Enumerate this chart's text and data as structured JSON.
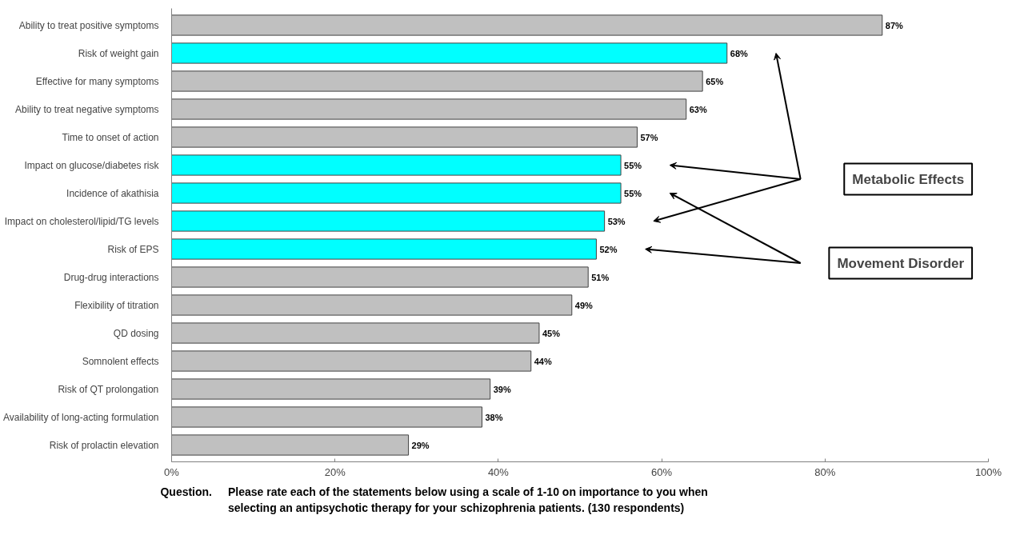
{
  "chart_data": {
    "type": "bar",
    "orientation": "horizontal",
    "categories": [
      "Ability to treat positive symptoms",
      "Risk of weight gain",
      "Effective for many symptoms",
      "Ability to treat negative symptoms",
      "Time to onset of action",
      "Impact on glucose/diabetes risk",
      "Incidence of akathisia",
      "Impact on cholesterol/lipid/TG levels",
      "Risk of EPS",
      "Drug-drug interactions",
      "Flexibility of titration",
      "QD dosing",
      "Somnolent effects",
      "Risk of QT prolongation",
      "Availability of long-acting formulation",
      "Risk of prolactin elevation"
    ],
    "values": [
      87,
      68,
      65,
      63,
      57,
      55,
      55,
      53,
      52,
      51,
      49,
      45,
      44,
      39,
      38,
      29
    ],
    "value_labels": [
      "87%",
      "68%",
      "65%",
      "63%",
      "57%",
      "55%",
      "55%",
      "53%",
      "52%",
      "51%",
      "49%",
      "45%",
      "44%",
      "39%",
      "38%",
      "29%"
    ],
    "colors": [
      "#c0c0c0",
      "#00ffff",
      "#c0c0c0",
      "#c0c0c0",
      "#c0c0c0",
      "#00ffff",
      "#00ffff",
      "#00ffff",
      "#00ffff",
      "#c0c0c0",
      "#c0c0c0",
      "#c0c0c0",
      "#c0c0c0",
      "#c0c0c0",
      "#c0c0c0",
      "#c0c0c0"
    ],
    "xlim": [
      0,
      100
    ],
    "xticks": [
      {
        "value": 0,
        "label": "0%"
      },
      {
        "value": 20,
        "label": "20%"
      },
      {
        "value": 40,
        "label": "40%"
      },
      {
        "value": 60,
        "label": "60%"
      },
      {
        "value": 80,
        "label": "80%"
      },
      {
        "value": 100,
        "label": "100%"
      }
    ],
    "grid": false,
    "annotations": [
      "Metabolic Effects",
      "Movement Disorder",
      "Question.",
      "Please rate each of the statements below using a scale of 1-10 on importance to you when selecting an antipsychotic therapy for your schizophrenia patients.  (130 respondents)"
    ]
  }
}
